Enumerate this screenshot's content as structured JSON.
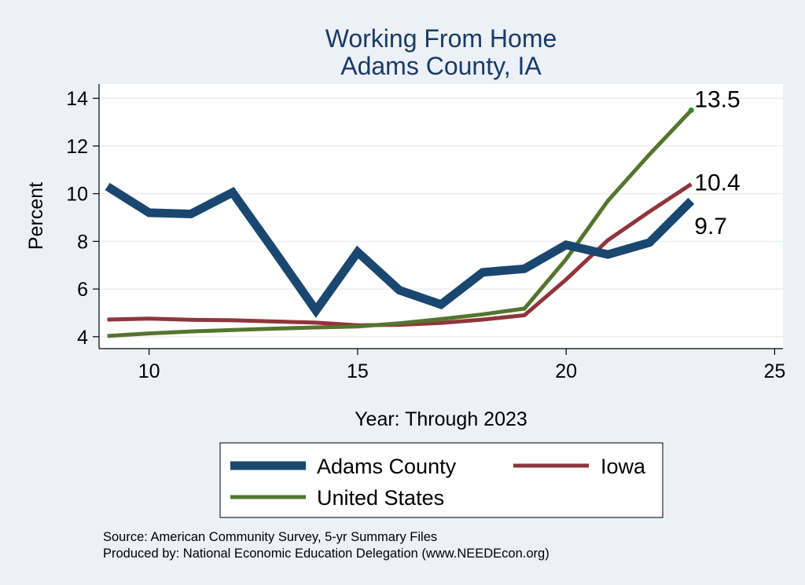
{
  "chart_data": {
    "type": "line",
    "title": "Working From Home",
    "subtitle": "Adams County, IA",
    "xlabel": "Year: Through 2023",
    "ylabel": "Percent",
    "xlim": [
      8.8,
      25.2
    ],
    "ylim": [
      3.5,
      14.6
    ],
    "xticks": [
      10,
      15,
      20,
      25
    ],
    "yticks": [
      4,
      6,
      8,
      10,
      12,
      14
    ],
    "grid": true,
    "legend_position": "bottom",
    "series": [
      {
        "name": "Adams County",
        "color": "#1a476f",
        "x": [
          9,
          10,
          11,
          12,
          13,
          14,
          15,
          16,
          17,
          18,
          19,
          20,
          21,
          22,
          23
        ],
        "y": [
          10.3,
          9.2,
          9.15,
          10.05,
          7.6,
          5.1,
          7.55,
          5.95,
          5.35,
          6.7,
          6.85,
          7.85,
          7.45,
          7.95,
          9.7
        ]
      },
      {
        "name": "Iowa",
        "color": "#90353b",
        "x": [
          9,
          10,
          11,
          12,
          13,
          14,
          15,
          16,
          17,
          18,
          19,
          20,
          21,
          22,
          23
        ],
        "y": [
          4.72,
          4.76,
          4.71,
          4.69,
          4.64,
          4.59,
          4.48,
          4.5,
          4.58,
          4.72,
          4.9,
          6.4,
          8.05,
          9.25,
          10.4
        ]
      },
      {
        "name": "United States",
        "color": "#55752f",
        "x": [
          9,
          10,
          11,
          12,
          13,
          14,
          15,
          16,
          17,
          18,
          19,
          20,
          21,
          22,
          23
        ],
        "y": [
          4.03,
          4.14,
          4.22,
          4.28,
          4.34,
          4.39,
          4.43,
          4.56,
          4.74,
          4.94,
          5.18,
          7.25,
          9.7,
          11.65,
          13.5
        ]
      }
    ],
    "end_labels": [
      {
        "text": "13.5",
        "series": "United States"
      },
      {
        "text": "10.4",
        "series": "Iowa"
      },
      {
        "text": "9.7",
        "series": "Adams County"
      }
    ]
  },
  "notes": {
    "source": "Source: American Community Survey, 5-yr Summary Files",
    "produced_by": "Produced by: National Economic Education Delegation (www.NEEDEcon.org)"
  }
}
